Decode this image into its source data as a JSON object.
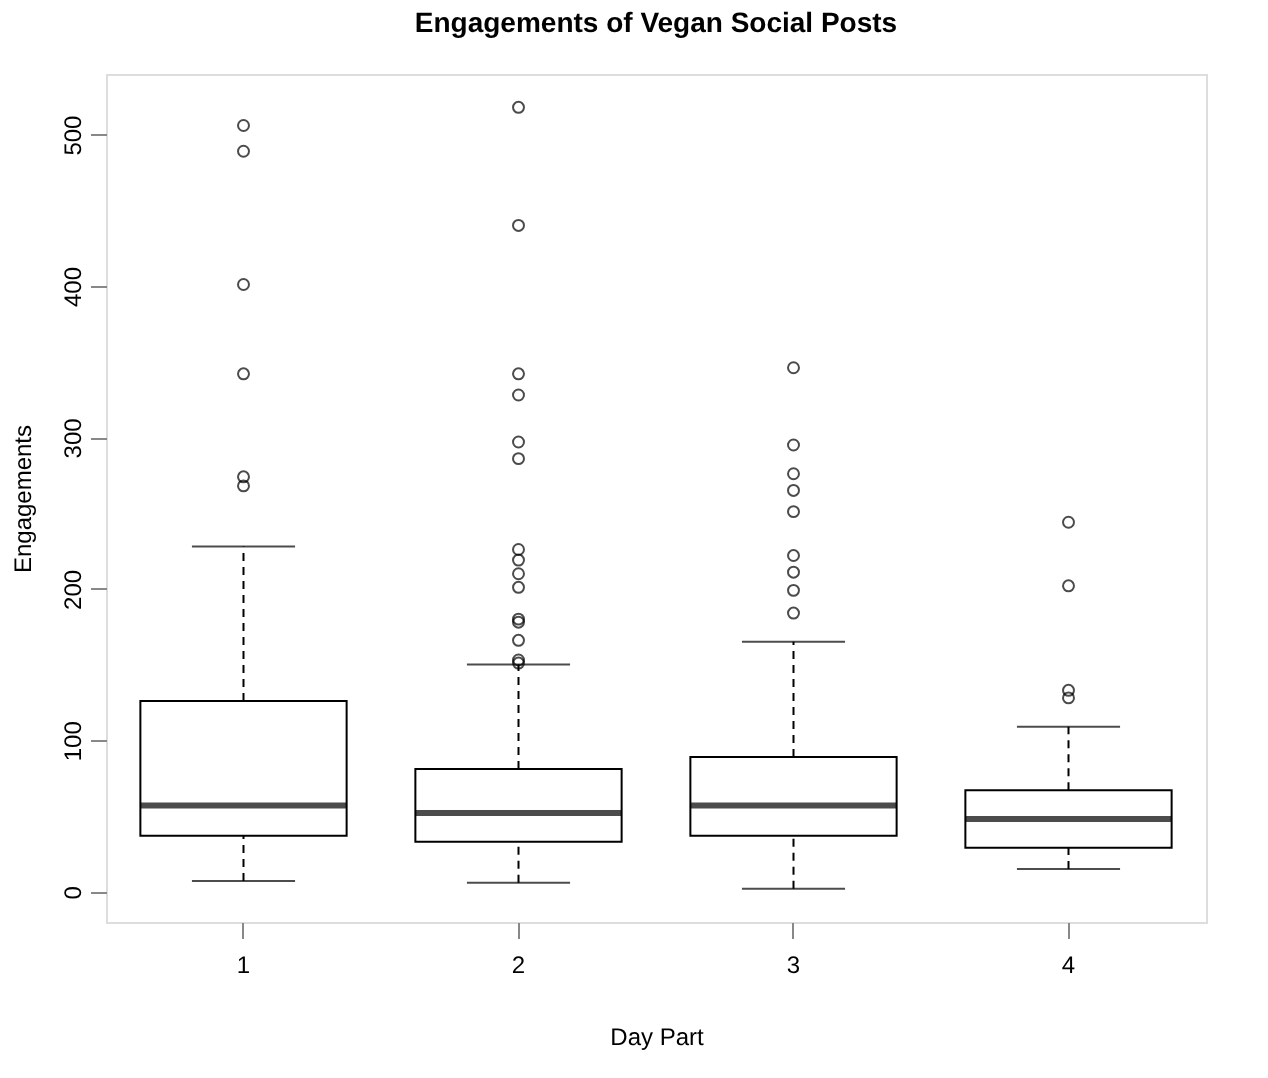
{
  "chart_data": {
    "type": "box",
    "title": "Engagements of Vegan Social Posts",
    "xlabel": "Day Part",
    "ylabel": "Engagements",
    "categories": [
      "1",
      "2",
      "3",
      "4"
    ],
    "boxes": [
      {
        "low": 7,
        "q1": 37,
        "median": 57,
        "q3": 126,
        "high": 228,
        "outliers": [
          506,
          489,
          401,
          342,
          274,
          268
        ]
      },
      {
        "low": 6,
        "q1": 33,
        "median": 52,
        "q3": 81,
        "high": 150,
        "outliers": [
          518,
          440,
          342,
          328,
          297,
          286,
          226,
          219,
          210,
          201,
          180,
          178,
          166,
          153,
          151
        ]
      },
      {
        "low": 2,
        "q1": 37,
        "median": 57,
        "q3": 89,
        "high": 165,
        "outliers": [
          346,
          295,
          276,
          265,
          251,
          222,
          211,
          199,
          184
        ]
      },
      {
        "low": 15,
        "q1": 29,
        "median": 48,
        "q3": 67,
        "high": 109,
        "outliers": [
          244,
          202,
          133,
          128
        ]
      }
    ],
    "ylim": [
      -20,
      540
    ],
    "yticks": [
      0,
      100,
      200,
      300,
      400,
      500
    ],
    "grid": false
  }
}
